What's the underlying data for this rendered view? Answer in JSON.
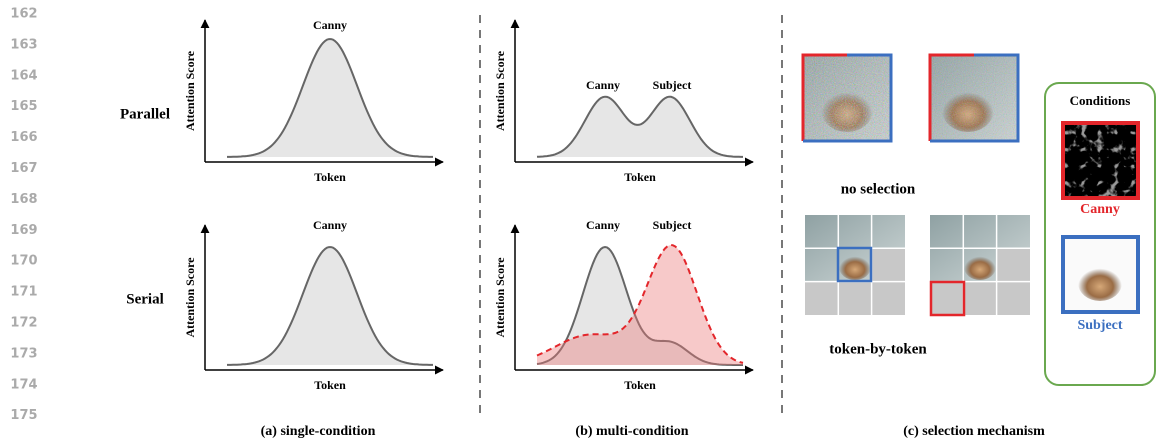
{
  "line_numbers": [
    "162",
    "163",
    "164",
    "165",
    "166",
    "167",
    "168",
    "169",
    "170",
    "171",
    "172",
    "173",
    "174",
    "175"
  ],
  "rows": [
    "Parallel",
    "Serial"
  ],
  "panels": [
    {
      "caption": "(a) single-condition",
      "plots": [
        {
          "y_label": "Attention Score",
          "x_label": "Token",
          "peak_labels": [
            "Canny"
          ]
        },
        {
          "y_label": "Attention Score",
          "x_label": "Token",
          "peak_labels": [
            "Canny"
          ]
        }
      ]
    },
    {
      "caption": "(b) multi-condition",
      "plots": [
        {
          "y_label": "Attention Score",
          "x_label": "Token",
          "peak_labels": [
            "Canny",
            "Subject"
          ]
        },
        {
          "y_label": "Attention Score",
          "x_label": "Token",
          "peak_labels": [
            "Canny",
            "Subject"
          ]
        }
      ]
    }
  ],
  "selection": {
    "caption": "(c) selection mechanism",
    "no_selection": "no selection",
    "token_by_token": "token-by-token",
    "conditions": {
      "title": "Conditions",
      "canny": "Canny",
      "subject": "Subject"
    }
  }
}
